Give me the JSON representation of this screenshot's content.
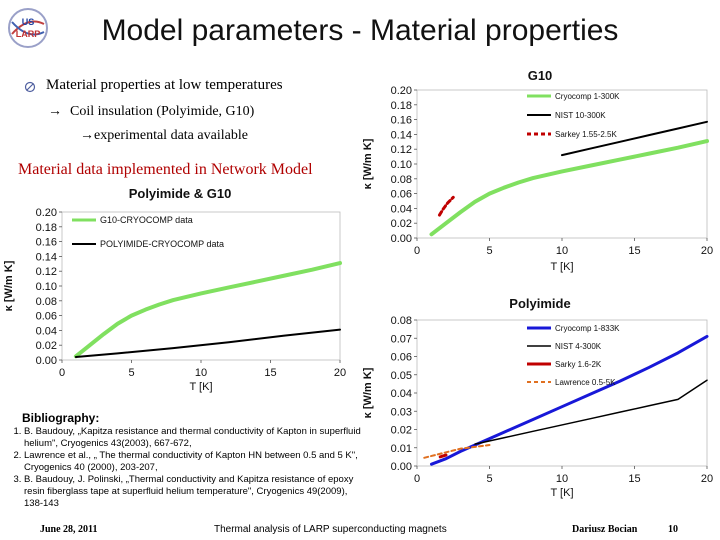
{
  "slide": {
    "title": "Model parameters - Material properties",
    "logo_text": "US LARP",
    "bullets": {
      "main": "Material properties at low temperatures",
      "sub_arrow": "→",
      "sub": "Coil insulation (Polyimide, G10)",
      "exp": "→experimental data available"
    },
    "network_heading": "Material data implemented in Network Model",
    "bibliography": {
      "title": "Bibliography:",
      "items": [
        "B. Baudouy, „Kapitza resistance and thermal conductivity of Kapton in superfluid helium\", Cryogenics 43(2003), 667-672,",
        "Lawrence et al., „ The thermal conductivity of Kapton HN between 0.5 and 5 K\", Cryogenics 40 (2000), 203-207,",
        "B. Baudouy, J. Polinski, „Thermal conductivity and Kapitza resistance of epoxy resin fiberglass tape at superfluid helium temperature\", Cryogenics 49(2009), 138-143"
      ]
    },
    "footer": {
      "date": "June 28, 2011",
      "center": "Thermal analysis of LARP superconducting magnets",
      "author": "Dariusz Bocian",
      "page": "10"
    }
  },
  "colors": {
    "green": "#80e060",
    "black": "#000000",
    "red": "#c00000",
    "blue": "#1818d8",
    "orange": "#e07020",
    "title_red": "#b00000"
  },
  "icons": {
    "bullet": "circle-slash-icon",
    "logo": "larp-logo-icon"
  },
  "chart_data": [
    {
      "id": "poly-g10",
      "type": "line",
      "title": "Polyimide & G10",
      "xlabel": "T [K]",
      "ylabel": "κ [W/m K]",
      "xlim": [
        0,
        20
      ],
      "ylim": [
        0,
        0.2
      ],
      "xticks": [
        "0",
        "5",
        "10",
        "15",
        "20"
      ],
      "yticks": [
        "0.00",
        "0.02",
        "0.04",
        "0.06",
        "0.08",
        "0.10",
        "0.12",
        "0.14",
        "0.16",
        "0.18",
        "0.20"
      ],
      "legend_placement": "top-left",
      "series": [
        {
          "name": "G10-CRYOCOMP data",
          "color": "#80e060",
          "width": 4,
          "x": [
            1,
            2,
            3,
            4,
            5,
            6,
            7,
            8,
            10,
            12,
            14,
            16,
            18,
            20
          ],
          "y": [
            0.005,
            0.02,
            0.035,
            0.049,
            0.06,
            0.068,
            0.075,
            0.081,
            0.09,
            0.098,
            0.106,
            0.114,
            0.122,
            0.131
          ]
        },
        {
          "name": "POLYIMIDE-CRYOCOMP data",
          "color": "#000000",
          "width": 2,
          "x": [
            1,
            4,
            8,
            12,
            16,
            20
          ],
          "y": [
            0.004,
            0.009,
            0.016,
            0.024,
            0.033,
            0.041
          ]
        }
      ]
    },
    {
      "id": "g10",
      "type": "line",
      "title": "G10",
      "xlabel": "T [K]",
      "ylabel": "κ [W/m K]",
      "xlim": [
        0,
        20
      ],
      "ylim": [
        0,
        0.2
      ],
      "xticks": [
        "0",
        "5",
        "10",
        "15",
        "20"
      ],
      "yticks": [
        "0.00",
        "0.02",
        "0.04",
        "0.06",
        "0.08",
        "0.10",
        "0.12",
        "0.14",
        "0.16",
        "0.18",
        "0.20"
      ],
      "legend_placement": "top-right",
      "series": [
        {
          "name": "Cryocomp 1-300K",
          "color": "#80e060",
          "width": 4,
          "x": [
            1,
            2,
            3,
            4,
            5,
            6,
            7,
            8,
            10,
            12,
            14,
            16,
            18,
            20
          ],
          "y": [
            0.005,
            0.02,
            0.035,
            0.049,
            0.06,
            0.068,
            0.075,
            0.081,
            0.09,
            0.098,
            0.106,
            0.114,
            0.122,
            0.131
          ]
        },
        {
          "name": "NIST 10-300K",
          "color": "#000000",
          "width": 2,
          "x": [
            10,
            12,
            14,
            16,
            18,
            20
          ],
          "y": [
            0.112,
            0.121,
            0.13,
            0.139,
            0.148,
            0.157
          ]
        },
        {
          "name": "Sarkey 1.55-2.5K",
          "color": "#c00000",
          "width": 3,
          "dash": "4 3",
          "x": [
            1.55,
            1.8,
            2.1,
            2.5
          ],
          "y": [
            0.031,
            0.039,
            0.047,
            0.055
          ]
        }
      ]
    },
    {
      "id": "polyimide",
      "type": "line",
      "title": "Polyimide",
      "xlabel": "T [K]",
      "ylabel": "κ [W/m K]",
      "xlim": [
        0,
        20
      ],
      "ylim": [
        0,
        0.08
      ],
      "xticks": [
        "0",
        "5",
        "10",
        "15",
        "20"
      ],
      "yticks": [
        "0.00",
        "0.01",
        "0.02",
        "0.03",
        "0.04",
        "0.05",
        "0.06",
        "0.07",
        "0.08"
      ],
      "legend_placement": "top-right",
      "series": [
        {
          "name": "Cryocomp 1-833K",
          "color": "#1818d8",
          "width": 3,
          "x": [
            1,
            2,
            3,
            4,
            5,
            6,
            8,
            10,
            12,
            14,
            16,
            18,
            20
          ],
          "y": [
            0.001,
            0.004,
            0.008,
            0.0115,
            0.015,
            0.0185,
            0.0255,
            0.0325,
            0.0395,
            0.0465,
            0.054,
            0.062,
            0.071
          ]
        },
        {
          "name": "NIST 4-300K",
          "color": "#000000",
          "width": 1.5,
          "x": [
            4,
            6,
            8,
            10,
            12,
            14,
            16,
            18,
            20
          ],
          "y": [
            0.012,
            0.0155,
            0.019,
            0.0225,
            0.026,
            0.0295,
            0.033,
            0.0365,
            0.047
          ]
        },
        {
          "name": "Sarky 1.6-2K",
          "color": "#c00000",
          "width": 3,
          "x": [
            1.6,
            1.8,
            2.0
          ],
          "y": [
            0.005,
            0.0055,
            0.006
          ]
        },
        {
          "name": "Lawrence 0.5-5K",
          "color": "#e07020",
          "width": 2,
          "dash": "4 3",
          "x": [
            0.5,
            1,
            2,
            3,
            4,
            5
          ],
          "y": [
            0.0045,
            0.0055,
            0.0075,
            0.0095,
            0.0105,
            0.0115
          ]
        }
      ]
    }
  ]
}
